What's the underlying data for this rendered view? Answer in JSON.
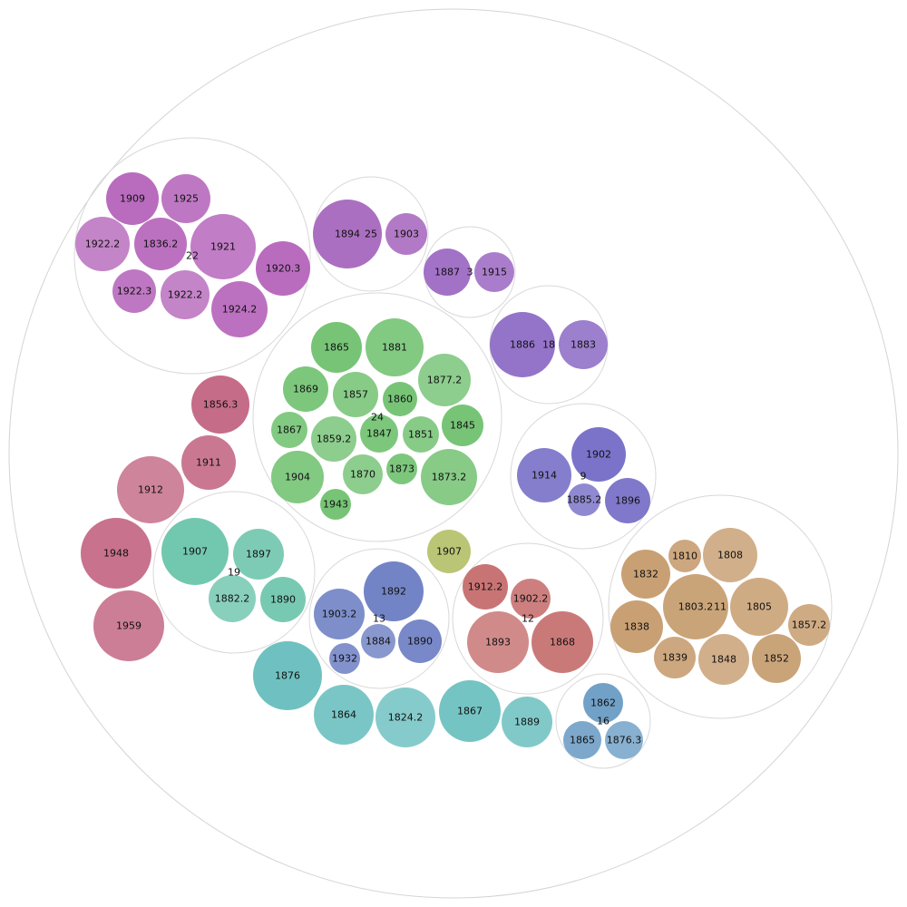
{
  "chart_data": {
    "type": "packed_bubble",
    "outer_circle": {
      "stroke": "#d4d4d4"
    },
    "groups": [
      {
        "label": "22",
        "color": "#b35fb8",
        "items": [
          {
            "value_label": "1909",
            "overlay_label": ""
          },
          {
            "value_label": "1925",
            "overlay_label": ""
          },
          {
            "value_label": "1922.2",
            "overlay_label": ""
          },
          {
            "value_label": "1836.2",
            "overlay_label": ""
          },
          {
            "value_label": "1921",
            "overlay_label": ""
          },
          {
            "value_label": "1920.3",
            "overlay_label": ""
          },
          {
            "value_label": "1922.3",
            "overlay_label": ""
          },
          {
            "value_label": "1922.2",
            "overlay_label": ""
          },
          {
            "value_label": "1924.2",
            "overlay_label": ""
          }
        ]
      },
      {
        "label": "25",
        "color": "#a463bc",
        "items": [
          {
            "value_label": "1894",
            "overlay_label": ""
          },
          {
            "value_label": "1903",
            "overlay_label": ""
          }
        ]
      },
      {
        "label": "3",
        "color": "#9a66c2",
        "items": [
          {
            "value_label": "1887",
            "overlay_label": ""
          },
          {
            "value_label": "1915",
            "overlay_label": ""
          }
        ]
      },
      {
        "label": "18",
        "color": "#8b68c4",
        "items": [
          {
            "value_label": "1886",
            "overlay_label": ""
          },
          {
            "value_label": "1883",
            "overlay_label": ""
          }
        ]
      },
      {
        "label": "24",
        "color": "#6bbf6b",
        "items": [
          {
            "value_label": "1865",
            "overlay_label": ""
          },
          {
            "value_label": "1881",
            "overlay_label": ""
          },
          {
            "value_label": "1877.2",
            "overlay_label": ""
          },
          {
            "value_label": "1869",
            "overlay_label": ""
          },
          {
            "value_label": "1857",
            "overlay_label": ""
          },
          {
            "value_label": "1860",
            "overlay_label": ""
          },
          {
            "value_label": "1867",
            "overlay_label": ""
          },
          {
            "value_label": "1859.2",
            "overlay_label": ""
          },
          {
            "value_label": "1847",
            "overlay_label": ""
          },
          {
            "value_label": "1851",
            "overlay_label": ""
          },
          {
            "value_label": "1845",
            "overlay_label": ""
          },
          {
            "value_label": "1904",
            "overlay_label": ""
          },
          {
            "value_label": "1870",
            "overlay_label": ""
          },
          {
            "value_label": "1873",
            "overlay_label": ""
          },
          {
            "value_label": "1873.2",
            "overlay_label": ""
          },
          {
            "value_label": "1943",
            "overlay_label": ""
          }
        ]
      },
      {
        "label": "9",
        "color": "#6f67c4",
        "items": [
          {
            "value_label": "1902",
            "overlay_label": ""
          },
          {
            "value_label": "1914",
            "overlay_label": ""
          },
          {
            "value_label": "1885.2",
            "overlay_label": ""
          },
          {
            "value_label": "1896",
            "overlay_label": ""
          }
        ]
      },
      {
        "label": "",
        "color": "#c0607e",
        "items": [
          {
            "value_label": "1856.3",
            "overlay_label": ""
          },
          {
            "value_label": "1911",
            "overlay_label": ""
          },
          {
            "value_label": "1912",
            "overlay_label": ""
          },
          {
            "value_label": "1948",
            "overlay_label": ""
          },
          {
            "value_label": "1959",
            "overlay_label": ""
          }
        ]
      },
      {
        "label": "19",
        "color": "#66c2a8",
        "items": [
          {
            "value_label": "1907",
            "overlay_label": ""
          },
          {
            "value_label": "1897",
            "overlay_label": ""
          },
          {
            "value_label": "1882.2",
            "overlay_label": ""
          },
          {
            "value_label": "1890",
            "overlay_label": ""
          }
        ]
      },
      {
        "label": "13",
        "color": "#6679c0",
        "items": [
          {
            "value_label": "1892",
            "overlay_label": ""
          },
          {
            "value_label": "1903.2",
            "overlay_label": ""
          },
          {
            "value_label": "1884",
            "overlay_label": ""
          },
          {
            "value_label": "1890",
            "overlay_label": ""
          },
          {
            "value_label": "1932",
            "overlay_label": ""
          }
        ]
      },
      {
        "label": "",
        "color": "#b5c06a",
        "items": [
          {
            "value_label": "1907",
            "overlay_label": ""
          }
        ]
      },
      {
        "label": "12",
        "color": "#c46868",
        "items": [
          {
            "value_label": "1912.2",
            "overlay_label": ""
          },
          {
            "value_label": "1902.2",
            "overlay_label": ""
          },
          {
            "value_label": "1893",
            "overlay_label": ""
          },
          {
            "value_label": "1868",
            "overlay_label": ""
          }
        ]
      },
      {
        "label": "11",
        "color": "#c49868",
        "items": [
          {
            "value_label": "1832",
            "overlay_label": ""
          },
          {
            "value_label": "1810",
            "overlay_label": ""
          },
          {
            "value_label": "1808",
            "overlay_label": ""
          },
          {
            "value_label": "1803.2",
            "overlay_label": ""
          },
          {
            "value_label": "1805",
            "overlay_label": ""
          },
          {
            "value_label": "1838",
            "overlay_label": ""
          },
          {
            "value_label": "1839",
            "overlay_label": ""
          },
          {
            "value_label": "1848",
            "overlay_label": ""
          },
          {
            "value_label": "1852",
            "overlay_label": ""
          },
          {
            "value_label": "1857.2",
            "overlay_label": ""
          }
        ]
      },
      {
        "label": "",
        "color": "#63bcbc",
        "items": [
          {
            "value_label": "1876",
            "overlay_label": ""
          },
          {
            "value_label": "1864",
            "overlay_label": ""
          },
          {
            "value_label": "1824.2",
            "overlay_label": ""
          },
          {
            "value_label": "1867",
            "overlay_label": ""
          },
          {
            "value_label": "1889",
            "overlay_label": ""
          }
        ]
      },
      {
        "label": "16",
        "color": "#6699c2",
        "items": [
          {
            "value_label": "1862",
            "overlay_label": ""
          },
          {
            "value_label": "1865",
            "overlay_label": ""
          },
          {
            "value_label": "1876.3",
            "overlay_label": ""
          }
        ]
      }
    ]
  }
}
